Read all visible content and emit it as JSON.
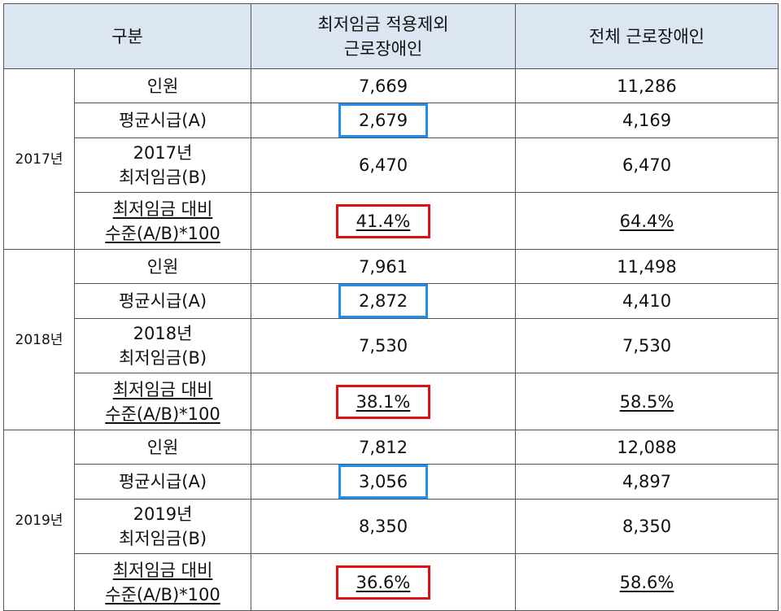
{
  "header": {
    "category": "구분",
    "excluded_line1": "최저임금 적용제외",
    "excluded_line2": "근로장애인",
    "all": "전체 근로장애인"
  },
  "row_labels": {
    "headcount": "인원",
    "avg_hourly": "평균시급(A)",
    "min_wage_suffix": "최저임금(B)",
    "ratio_line1": "최저임금 대비",
    "ratio_line2": "수준(A/B)*100"
  },
  "years": [
    {
      "label": "2017년",
      "min_wage_year": "2017년",
      "headcount": {
        "excluded": "7,669",
        "all": "11,286"
      },
      "avg_hourly": {
        "excluded": "2,679",
        "all": "4,169"
      },
      "min_wage": {
        "excluded": "6,470",
        "all": "6,470"
      },
      "ratio": {
        "excluded": "41.4%",
        "all": "64.4%"
      }
    },
    {
      "label": "2018년",
      "min_wage_year": "2018년",
      "headcount": {
        "excluded": "7,961",
        "all": "11,498"
      },
      "avg_hourly": {
        "excluded": "2,872",
        "all": "4,410"
      },
      "min_wage": {
        "excluded": "7,530",
        "all": "7,530"
      },
      "ratio": {
        "excluded": "38.1%",
        "all": "58.5%"
      }
    },
    {
      "label": "2019년",
      "min_wage_year": "2019년",
      "headcount": {
        "excluded": "7,812",
        "all": "12,088"
      },
      "avg_hourly": {
        "excluded": "3,056",
        "all": "4,897"
      },
      "min_wage": {
        "excluded": "8,350",
        "all": "8,350"
      },
      "ratio": {
        "excluded": "36.6%",
        "all": "58.6%"
      }
    }
  ],
  "colors": {
    "header_bg": "#dce6f2",
    "highlight_avg": "#1f8ef0",
    "highlight_ratio": "#e01010"
  }
}
